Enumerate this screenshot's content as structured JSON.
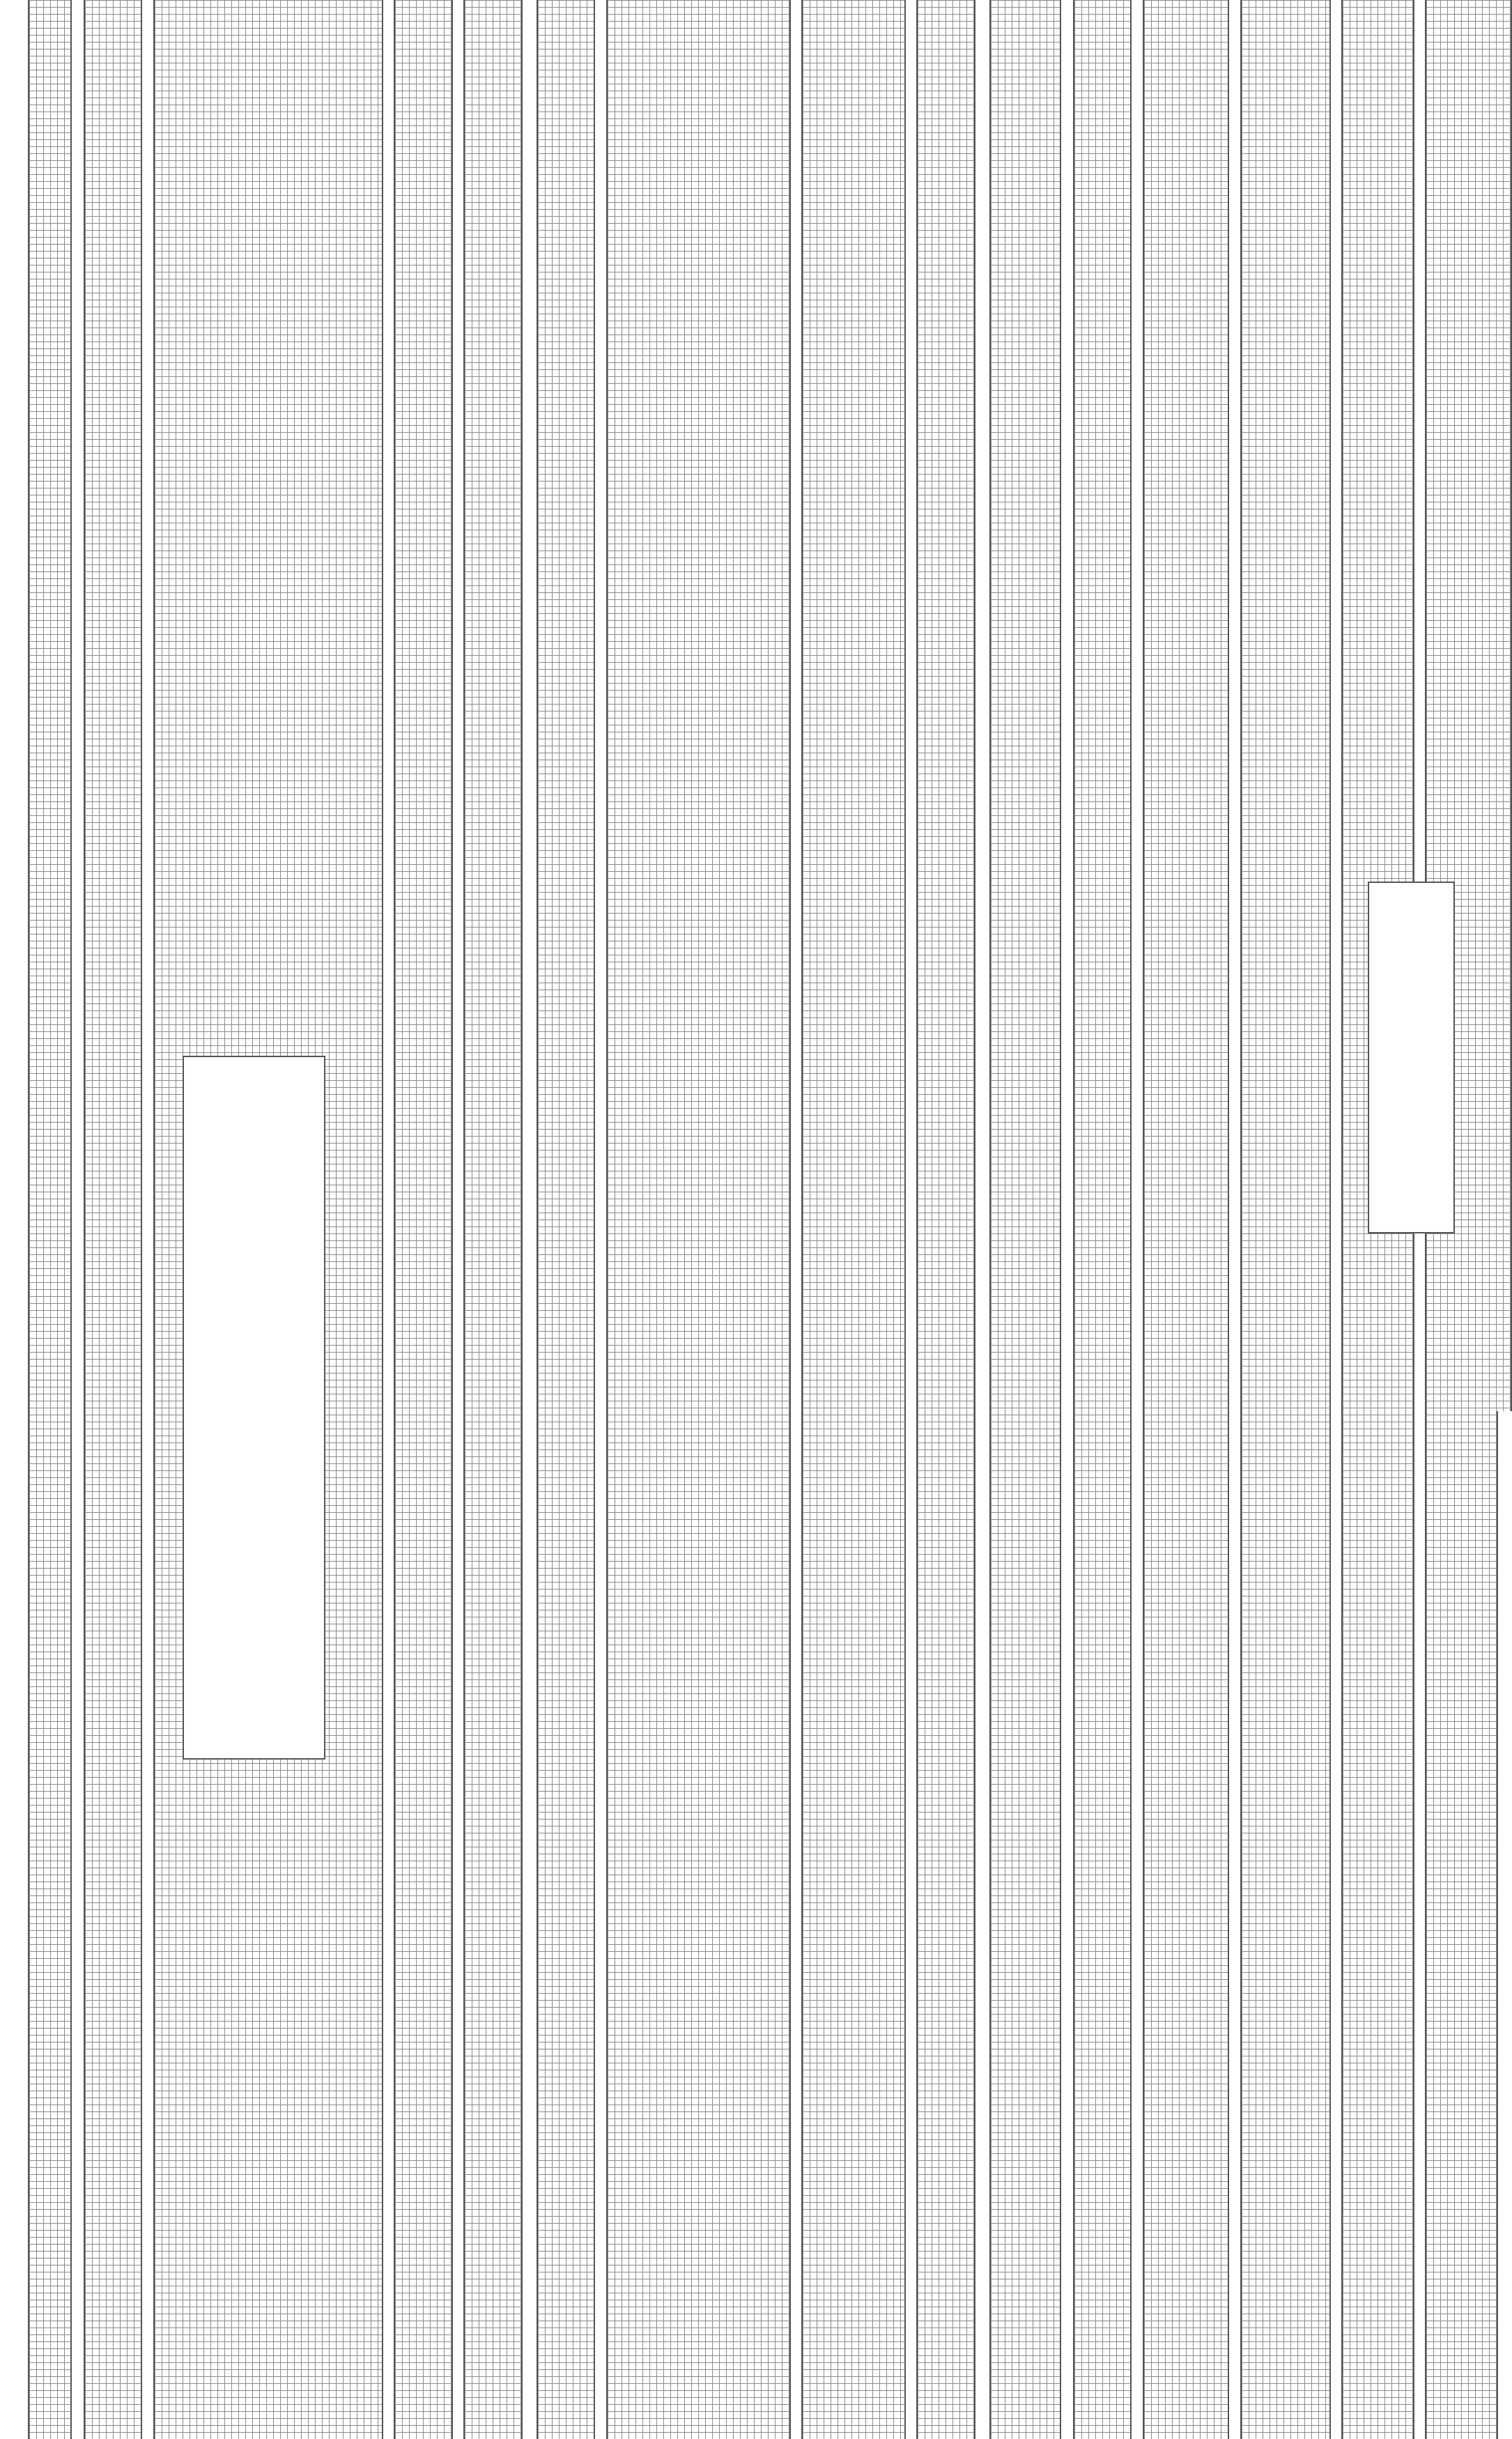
{
  "grid": {
    "line_color": "#8a8a8a",
    "border_color": "#555555",
    "background_color": "#ffffff"
  }
}
